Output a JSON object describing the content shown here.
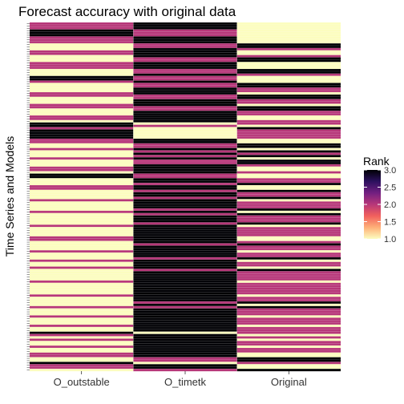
{
  "chart_data": {
    "type": "heatmap",
    "title": "Forecast accuracy with original data",
    "xlabel": "",
    "ylabel": "Time Series and Models",
    "x_categories": [
      "O_outstable",
      "O_timetk",
      "Original"
    ],
    "row_count": 150,
    "legend": {
      "title": "Rank",
      "placement": "right",
      "range": [
        1.0,
        3.0
      ],
      "ticks": [
        "3.0",
        "2.5",
        "2.0",
        "1.5",
        "1.0"
      ]
    },
    "colorscale": [
      "#fcfdbf",
      "#feb078",
      "#f1605d",
      "#b73779",
      "#721f81",
      "#2c115f",
      "#000004"
    ],
    "ranks": {
      "O_outstable": [
        2,
        2,
        2,
        3,
        3,
        3,
        2,
        2,
        2,
        1,
        1,
        1,
        2,
        2,
        1,
        1,
        1,
        2,
        2,
        2,
        1,
        1,
        1,
        3,
        3,
        2,
        1,
        1,
        1,
        1,
        2,
        2,
        1,
        1,
        1,
        2,
        2,
        1,
        1,
        1,
        2,
        2,
        1,
        3,
        3,
        2,
        3,
        3,
        3,
        3,
        2,
        2,
        1,
        1,
        2,
        1,
        1,
        1,
        2,
        1,
        1,
        1,
        2,
        2,
        1,
        3,
        3,
        1,
        1,
        1,
        2,
        2,
        1,
        1,
        1,
        1,
        2,
        1,
        1,
        1,
        1,
        2,
        1,
        1,
        1,
        1,
        1,
        2,
        1,
        1,
        1,
        1,
        2,
        2,
        1,
        1,
        1,
        1,
        2,
        1,
        1,
        1,
        2,
        1,
        1,
        2,
        1,
        1,
        1,
        1,
        1,
        2,
        1,
        1,
        1,
        1,
        1,
        2,
        1,
        1,
        1,
        1,
        2,
        1,
        1,
        1,
        2,
        1,
        1,
        1,
        2,
        1,
        1,
        3,
        2,
        1,
        2,
        1,
        1,
        2,
        1,
        1,
        2,
        2,
        1,
        1,
        3,
        2,
        2,
        1
      ],
      "O_timetk": [
        3,
        3,
        3,
        2,
        2,
        2,
        3,
        3,
        3,
        2,
        2,
        3,
        3,
        3,
        3,
        2,
        2,
        3,
        3,
        3,
        2,
        2,
        3,
        2,
        2,
        3,
        2,
        2,
        3,
        3,
        3,
        2,
        2,
        3,
        3,
        3,
        2,
        2,
        3,
        3,
        3,
        3,
        3,
        1,
        2,
        1,
        1,
        1,
        1,
        1,
        3,
        3,
        2,
        2,
        3,
        2,
        3,
        2,
        3,
        2,
        2,
        3,
        3,
        3,
        3,
        2,
        2,
        3,
        3,
        2,
        3,
        3,
        2,
        3,
        3,
        2,
        3,
        3,
        3,
        3,
        2,
        3,
        2,
        3,
        3,
        3,
        2,
        3,
        3,
        3,
        3,
        3,
        3,
        3,
        3,
        2,
        3,
        3,
        3,
        3,
        3,
        2,
        3,
        3,
        3,
        3,
        2,
        3,
        3,
        3,
        3,
        3,
        3,
        3,
        3,
        3,
        3,
        3,
        3,
        3,
        2,
        3,
        2,
        3,
        3,
        3,
        3,
        3,
        3,
        3,
        3,
        3,
        3,
        1,
        3,
        3,
        3,
        3,
        3,
        3,
        3,
        3,
        3,
        3,
        2,
        2,
        1,
        3,
        3,
        2
      ],
      "Original": [
        1,
        1,
        1,
        1,
        1,
        1,
        1,
        1,
        1,
        3,
        3,
        2,
        1,
        1,
        2,
        3,
        3,
        1,
        1,
        1,
        3,
        3,
        2,
        1,
        1,
        1,
        3,
        3,
        2,
        2,
        1,
        3,
        3,
        2,
        2,
        1,
        3,
        3,
        2,
        2,
        1,
        1,
        2,
        2,
        1,
        3,
        2,
        2,
        2,
        2,
        1,
        1,
        3,
        3,
        1,
        3,
        2,
        3,
        1,
        3,
        3,
        2,
        1,
        1,
        2,
        1,
        1,
        2,
        2,
        3,
        1,
        1,
        3,
        2,
        2,
        3,
        1,
        2,
        2,
        2,
        3,
        1,
        3,
        2,
        2,
        2,
        3,
        1,
        2,
        2,
        2,
        2,
        1,
        1,
        2,
        3,
        2,
        2,
        1,
        2,
        2,
        3,
        1,
        2,
        2,
        1,
        3,
        2,
        2,
        2,
        2,
        1,
        2,
        2,
        2,
        2,
        2,
        1,
        2,
        2,
        3,
        1,
        3,
        2,
        2,
        2,
        1,
        2,
        2,
        2,
        1,
        2,
        2,
        2,
        1,
        2,
        1,
        2,
        2,
        1,
        2,
        2,
        1,
        1,
        3,
        3,
        2,
        1,
        1,
        3
      ]
    }
  }
}
